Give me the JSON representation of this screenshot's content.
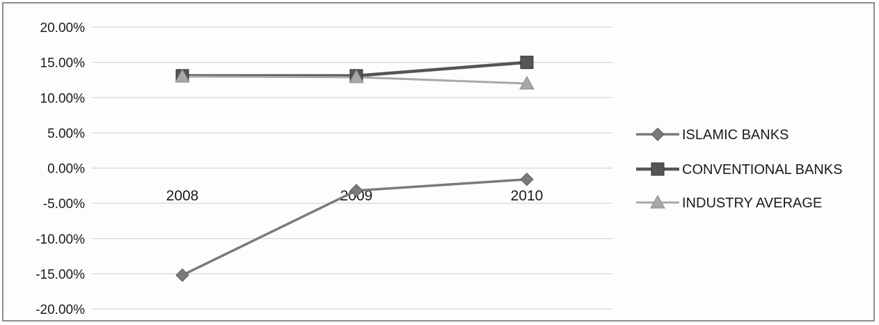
{
  "chart_data": {
    "type": "line",
    "categories": [
      "2008",
      "2009",
      "2010"
    ],
    "ylim": [
      -20,
      20
    ],
    "ytick_step": 5,
    "ytick_format": "percent-2dp",
    "grid": true,
    "legend_position": "right",
    "series": [
      {
        "name": "ISLAMIC BANKS",
        "values": [
          -15.2,
          -3.2,
          -1.6
        ],
        "color": "#7a7a7a",
        "marker": "diamond"
      },
      {
        "name": "CONVENTIONAL BANKS",
        "values": [
          13.1,
          13.1,
          15.0
        ],
        "color": "#555555",
        "marker": "square"
      },
      {
        "name": "INDUSTRY AVERAGE",
        "values": [
          13.0,
          12.9,
          12.0
        ],
        "color": "#a8a8a8",
        "marker": "triangle"
      }
    ]
  }
}
